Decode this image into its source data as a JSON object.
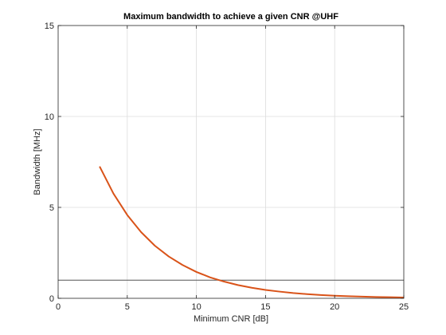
{
  "chart_data": {
    "type": "line",
    "title": "Maximum bandwidth to achieve a given CNR @UHF",
    "xlabel": "Minimum CNR [dB]",
    "ylabel": "Bandwidth [MHz]",
    "xlim": [
      0,
      25
    ],
    "ylim": [
      0,
      15
    ],
    "xticks": [
      0,
      5,
      10,
      15,
      20,
      25
    ],
    "yticks": [
      0,
      5,
      10,
      15
    ],
    "grid": true,
    "legend": "none",
    "series": [
      {
        "color": "#d95319",
        "x": [
          3,
          4,
          5,
          6,
          7,
          8,
          9,
          10,
          11,
          12,
          13,
          14,
          15,
          16,
          17,
          18,
          19,
          20,
          21,
          22,
          23,
          24,
          25
        ],
        "y": [
          7.25,
          5.76,
          4.58,
          3.64,
          2.89,
          2.3,
          1.83,
          1.45,
          1.15,
          0.92,
          0.73,
          0.58,
          0.46,
          0.37,
          0.29,
          0.23,
          0.18,
          0.145,
          0.115,
          0.092,
          0.073,
          0.058,
          0.046
        ]
      }
    ],
    "reference_lines": [
      {
        "orientation": "horizontal",
        "y": 1,
        "color": "#555555"
      }
    ]
  }
}
